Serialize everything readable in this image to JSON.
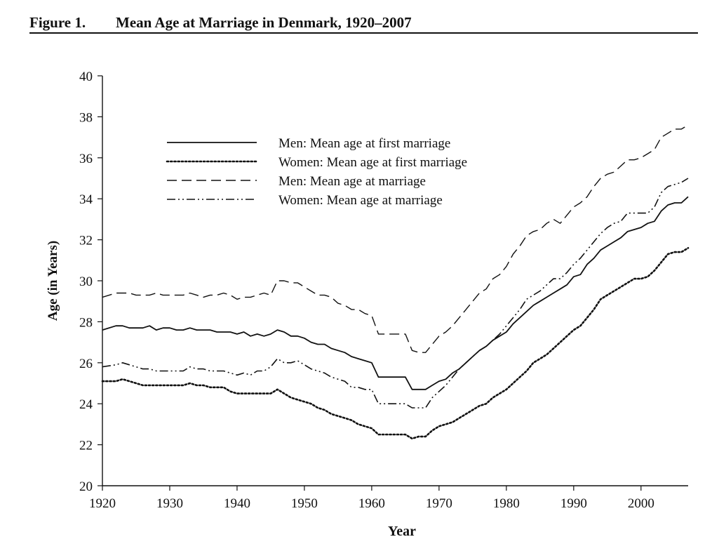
{
  "figure": {
    "label": "Figure 1.",
    "title": "Mean Age at Marriage in Denmark, 1920–2007"
  },
  "chart_data": {
    "type": "line",
    "title": "Mean Age at Marriage in Denmark, 1920–2007",
    "xlabel": "Year",
    "ylabel": "Age (in Years)",
    "xlim": [
      1920,
      2007
    ],
    "ylim": [
      20,
      40
    ],
    "xticks": [
      1920,
      1930,
      1940,
      1950,
      1960,
      1970,
      1980,
      1990,
      2000
    ],
    "yticks": [
      20,
      22,
      24,
      26,
      28,
      30,
      32,
      34,
      36,
      38,
      40
    ],
    "grid": false,
    "legend_position": "upper-left",
    "colors": {
      "line": "#111111"
    },
    "series": [
      {
        "name": "Men: Mean age at first marriage",
        "style": "solid",
        "x": [
          1920,
          1922,
          1923,
          1924,
          1925,
          1926,
          1927,
          1928,
          1929,
          1930,
          1931,
          1932,
          1933,
          1934,
          1935,
          1936,
          1937,
          1938,
          1939,
          1940,
          1941,
          1942,
          1943,
          1944,
          1945,
          1946,
          1947,
          1948,
          1949,
          1950,
          1951,
          1952,
          1953,
          1954,
          1955,
          1956,
          1957,
          1958,
          1959,
          1960,
          1961,
          1962,
          1963,
          1964,
          1965,
          1966,
          1967,
          1968,
          1969,
          1970,
          1971,
          1972,
          1973,
          1974,
          1975,
          1976,
          1977,
          1978,
          1979,
          1980,
          1981,
          1982,
          1983,
          1984,
          1985,
          1986,
          1987,
          1988,
          1989,
          1990,
          1991,
          1992,
          1993,
          1994,
          1995,
          1996,
          1997,
          1998,
          1999,
          2000,
          2001,
          2002,
          2003,
          2004,
          2005,
          2006,
          2007
        ],
        "y": [
          27.6,
          27.8,
          27.8,
          27.7,
          27.7,
          27.7,
          27.8,
          27.6,
          27.7,
          27.7,
          27.6,
          27.6,
          27.7,
          27.6,
          27.6,
          27.6,
          27.5,
          27.5,
          27.5,
          27.4,
          27.5,
          27.3,
          27.4,
          27.3,
          27.4,
          27.6,
          27.5,
          27.3,
          27.3,
          27.2,
          27.0,
          26.9,
          26.9,
          26.7,
          26.6,
          26.5,
          26.3,
          26.2,
          26.1,
          26.0,
          25.3,
          25.3,
          25.3,
          25.3,
          25.3,
          24.7,
          24.7,
          24.7,
          24.9,
          25.1,
          25.2,
          25.5,
          25.7,
          26.0,
          26.3,
          26.6,
          26.8,
          27.1,
          27.3,
          27.5,
          27.9,
          28.2,
          28.5,
          28.8,
          29.0,
          29.2,
          29.4,
          29.6,
          29.8,
          30.2,
          30.3,
          30.8,
          31.1,
          31.5,
          31.7,
          31.9,
          32.1,
          32.4,
          32.5,
          32.6,
          32.8,
          32.9,
          33.4,
          33.7,
          33.8,
          33.8,
          34.1
        ]
      },
      {
        "name": "Women: Mean age at first marriage",
        "style": "dotted",
        "x": [
          1920,
          1922,
          1923,
          1924,
          1925,
          1926,
          1927,
          1928,
          1929,
          1930,
          1931,
          1932,
          1933,
          1934,
          1935,
          1936,
          1937,
          1938,
          1939,
          1940,
          1941,
          1942,
          1943,
          1944,
          1945,
          1946,
          1947,
          1948,
          1949,
          1950,
          1951,
          1952,
          1953,
          1954,
          1955,
          1956,
          1957,
          1958,
          1959,
          1960,
          1961,
          1962,
          1963,
          1964,
          1965,
          1966,
          1967,
          1968,
          1969,
          1970,
          1971,
          1972,
          1973,
          1974,
          1975,
          1976,
          1977,
          1978,
          1979,
          1980,
          1981,
          1982,
          1983,
          1984,
          1985,
          1986,
          1987,
          1988,
          1989,
          1990,
          1991,
          1992,
          1993,
          1994,
          1995,
          1996,
          1997,
          1998,
          1999,
          2000,
          2001,
          2002,
          2003,
          2004,
          2005,
          2006,
          2007
        ],
        "y": [
          25.1,
          25.1,
          25.2,
          25.1,
          25.0,
          24.9,
          24.9,
          24.9,
          24.9,
          24.9,
          24.9,
          24.9,
          25.0,
          24.9,
          24.9,
          24.8,
          24.8,
          24.8,
          24.6,
          24.5,
          24.5,
          24.5,
          24.5,
          24.5,
          24.5,
          24.7,
          24.5,
          24.3,
          24.2,
          24.1,
          24.0,
          23.8,
          23.7,
          23.5,
          23.4,
          23.3,
          23.2,
          23.0,
          22.9,
          22.8,
          22.5,
          22.5,
          22.5,
          22.5,
          22.5,
          22.3,
          22.4,
          22.4,
          22.7,
          22.9,
          23.0,
          23.1,
          23.3,
          23.5,
          23.7,
          23.9,
          24.0,
          24.3,
          24.5,
          24.7,
          25.0,
          25.3,
          25.6,
          26.0,
          26.2,
          26.4,
          26.7,
          27.0,
          27.3,
          27.6,
          27.8,
          28.2,
          28.6,
          29.1,
          29.3,
          29.5,
          29.7,
          29.9,
          30.1,
          30.1,
          30.2,
          30.5,
          30.9,
          31.3,
          31.4,
          31.4,
          31.6
        ]
      },
      {
        "name": "Men: Mean age at marriage",
        "style": "dashed",
        "x": [
          1920,
          1922,
          1923,
          1924,
          1925,
          1926,
          1927,
          1928,
          1929,
          1930,
          1931,
          1932,
          1933,
          1934,
          1935,
          1936,
          1937,
          1938,
          1939,
          1940,
          1941,
          1942,
          1943,
          1944,
          1945,
          1946,
          1947,
          1948,
          1949,
          1950,
          1951,
          1952,
          1953,
          1954,
          1955,
          1956,
          1957,
          1958,
          1959,
          1960,
          1961,
          1962,
          1963,
          1964,
          1965,
          1966,
          1967,
          1968,
          1969,
          1970,
          1971,
          1972,
          1973,
          1974,
          1975,
          1976,
          1977,
          1978,
          1979,
          1980,
          1981,
          1982,
          1983,
          1984,
          1985,
          1986,
          1987,
          1988,
          1989,
          1990,
          1991,
          1992,
          1993,
          1994,
          1995,
          1996,
          1997,
          1998,
          1999,
          2000,
          2001,
          2002,
          2003,
          2004,
          2005,
          2006,
          2007
        ],
        "y": [
          29.2,
          29.4,
          29.4,
          29.4,
          29.3,
          29.3,
          29.3,
          29.4,
          29.3,
          29.3,
          29.3,
          29.3,
          29.4,
          29.3,
          29.2,
          29.3,
          29.3,
          29.4,
          29.3,
          29.1,
          29.2,
          29.2,
          29.3,
          29.4,
          29.3,
          30.0,
          30.0,
          29.9,
          29.9,
          29.7,
          29.5,
          29.3,
          29.3,
          29.2,
          28.9,
          28.8,
          28.6,
          28.6,
          28.4,
          28.3,
          27.4,
          27.4,
          27.4,
          27.4,
          27.4,
          26.6,
          26.5,
          26.5,
          26.9,
          27.3,
          27.5,
          27.8,
          28.2,
          28.6,
          29.0,
          29.4,
          29.6,
          30.1,
          30.3,
          30.7,
          31.3,
          31.7,
          32.2,
          32.4,
          32.5,
          32.8,
          33.0,
          32.8,
          33.2,
          33.6,
          33.8,
          34.1,
          34.6,
          35.0,
          35.2,
          35.3,
          35.6,
          35.9,
          35.9,
          36.0,
          36.2,
          36.4,
          37.0,
          37.2,
          37.4,
          37.4,
          37.6
        ]
      },
      {
        "name": "Women: Mean age at marriage",
        "style": "dash-dot-dot",
        "x": [
          1920,
          1922,
          1923,
          1924,
          1925,
          1926,
          1927,
          1928,
          1929,
          1930,
          1931,
          1932,
          1933,
          1934,
          1935,
          1936,
          1937,
          1938,
          1939,
          1940,
          1941,
          1942,
          1943,
          1944,
          1945,
          1946,
          1947,
          1948,
          1949,
          1950,
          1951,
          1952,
          1953,
          1954,
          1955,
          1956,
          1957,
          1958,
          1959,
          1960,
          1961,
          1962,
          1963,
          1964,
          1965,
          1966,
          1967,
          1968,
          1969,
          1970,
          1971,
          1972,
          1973,
          1974,
          1975,
          1976,
          1977,
          1978,
          1979,
          1980,
          1981,
          1982,
          1983,
          1984,
          1985,
          1986,
          1987,
          1988,
          1989,
          1990,
          1991,
          1992,
          1993,
          1994,
          1995,
          1996,
          1997,
          1998,
          1999,
          2000,
          2001,
          2002,
          2003,
          2004,
          2005,
          2006,
          2007
        ],
        "y": [
          25.8,
          25.9,
          26.0,
          25.9,
          25.8,
          25.7,
          25.7,
          25.6,
          25.6,
          25.6,
          25.6,
          25.6,
          25.8,
          25.7,
          25.7,
          25.6,
          25.6,
          25.6,
          25.5,
          25.4,
          25.5,
          25.4,
          25.6,
          25.6,
          25.8,
          26.2,
          26.0,
          26.0,
          26.1,
          25.9,
          25.7,
          25.6,
          25.5,
          25.3,
          25.2,
          25.1,
          24.8,
          24.8,
          24.7,
          24.7,
          24.0,
          24.0,
          24.0,
          24.0,
          24.0,
          23.8,
          23.8,
          23.8,
          24.3,
          24.6,
          24.9,
          25.3,
          25.7,
          26.0,
          26.3,
          26.6,
          26.8,
          27.1,
          27.4,
          27.8,
          28.2,
          28.6,
          29.1,
          29.3,
          29.5,
          29.8,
          30.1,
          30.1,
          30.4,
          30.8,
          31.1,
          31.5,
          31.9,
          32.3,
          32.6,
          32.8,
          32.9,
          33.3,
          33.3,
          33.3,
          33.3,
          33.6,
          34.3,
          34.6,
          34.7,
          34.8,
          35.0
        ]
      }
    ]
  }
}
